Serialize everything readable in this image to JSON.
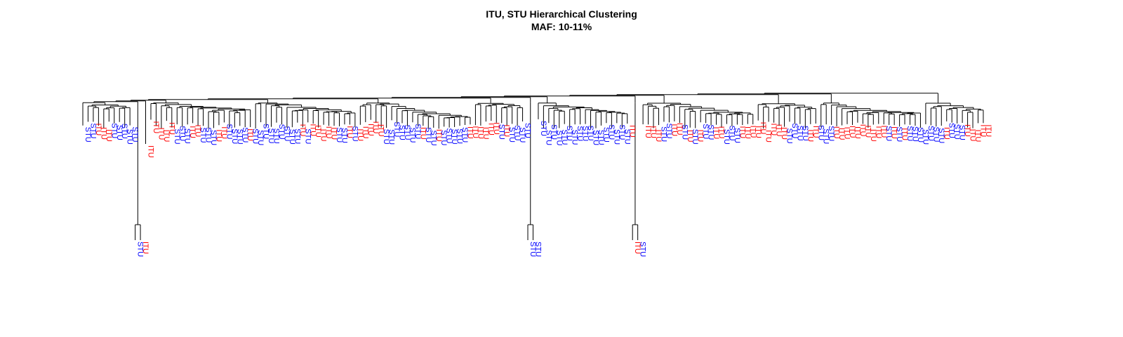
{
  "chart_data": {
    "type": "dendrogram",
    "title": "ITU, STU Hierarchical Clustering",
    "subtitle": "MAF: 10-11%",
    "xlabel": "",
    "ylabel": "",
    "grid": false,
    "legend": "none",
    "colors": {
      "ITU": "#ff0000",
      "STU": "#0000ff",
      "branch": "#000000"
    },
    "leaves": "SSIIISSSSSSIIIIIISSSIISSSIISSSSISSSSSSSSSISIIIIISSISIIIIISSSSSSSISSISSSSSIIIIIISISSSSSSSSSSSSSSSSSSSSSSSIISIIISSIISISISSIISSSIIIIIIIIISSSSIISSSIIIIIIIIIISISISSSSSSSISSSIIIIIIIIIIIIIIII",
    "groups": [
      {
        "leaves": 10,
        "root_height": 0.97,
        "join": 0.98
      },
      {
        "leaves": 2,
        "root_height": 0.1,
        "stem_height": 0.76,
        "join": 0.975
      },
      {
        "leaves": 1,
        "join": 0.9
      },
      {
        "leaves": 20,
        "root_height": 0.96,
        "join": 0.972
      },
      {
        "leaves": 20,
        "root_height": 0.955,
        "join": 0.968
      },
      {
        "leaves": 22,
        "root_height": 0.955,
        "join": 0.965
      },
      {
        "leaves": 10,
        "root_height": 0.945,
        "join": 0.97
      },
      {
        "leaves": 2,
        "root_height": 0.1,
        "stem_height": 0.72,
        "join": 0.985
      },
      {
        "leaves": 18,
        "root_height": 0.955,
        "join": 0.975
      },
      {
        "leaves": 2,
        "root_height": 0.1,
        "stem_height": 0.78,
        "join": 0.968
      },
      {
        "leaves": 22,
        "root_height": 0.95,
        "join": 0.962
      },
      {
        "leaves": 12,
        "root_height": 0.93,
        "join": 0.96
      },
      {
        "leaves": 20,
        "root_height": 0.955,
        "join": 0.975
      },
      {
        "leaves": 12,
        "root_height": 0.95,
        "join": 0.98
      }
    ]
  }
}
